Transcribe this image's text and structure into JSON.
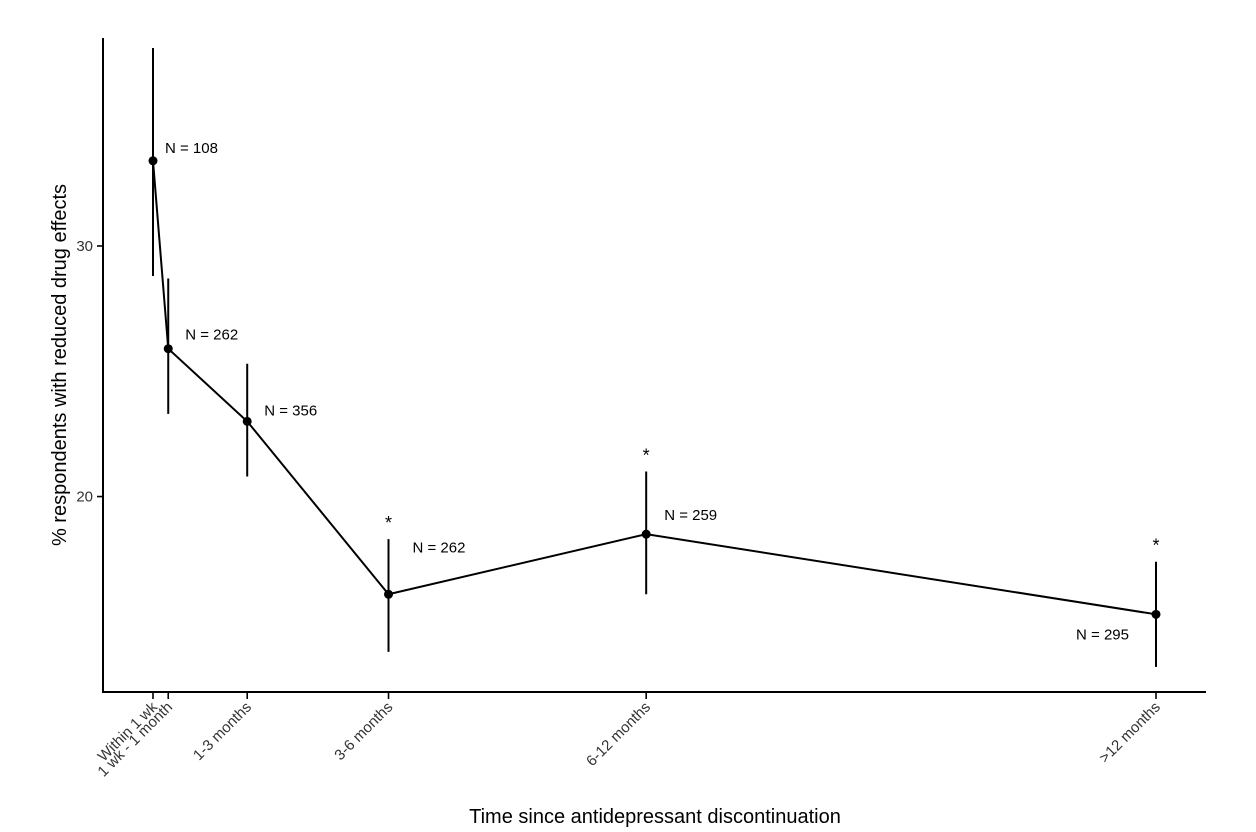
{
  "chart_data": {
    "type": "line",
    "title": "",
    "xlabel": "Time since antidepressant discontinuation",
    "ylabel": "% respondents with reduced drug effects",
    "x_ticks": [
      "Within 1 wk",
      "1 wk - 1 month",
      "1-3 months",
      "3-6 months",
      "6-12 months",
      ">12 months"
    ],
    "x_positions_months": [
      0.1,
      0.65,
      3.5,
      8.6,
      17.9,
      36.3
    ],
    "y_ticks": [
      20,
      30
    ],
    "ylim": [
      12.2,
      38.3
    ],
    "grid": false,
    "legend": "none",
    "points": [
      {
        "category": "Within 1 wk",
        "y": 33.4,
        "lower": 28.8,
        "upper": 37.9,
        "n_label": "N = 108",
        "significant": false,
        "significance_marker": ""
      },
      {
        "category": "1 wk - 1 month",
        "y": 25.9,
        "lower": 23.3,
        "upper": 28.7,
        "n_label": "N = 262",
        "significant": false,
        "significance_marker": ""
      },
      {
        "category": "1-3 months",
        "y": 23.0,
        "lower": 20.8,
        "upper": 25.3,
        "n_label": "N = 356",
        "significant": false,
        "significance_marker": ""
      },
      {
        "category": "3-6 months",
        "y": 16.1,
        "lower": 13.8,
        "upper": 18.3,
        "n_label": "N = 262",
        "significant": true,
        "significance_marker": "*"
      },
      {
        "category": "6-12 months",
        "y": 18.5,
        "lower": 16.1,
        "upper": 21.0,
        "n_label": "N = 259",
        "significant": true,
        "significance_marker": "*"
      },
      {
        "category": ">12 months",
        "y": 15.3,
        "lower": 13.2,
        "upper": 17.4,
        "n_label": "N = 295",
        "significant": true,
        "significance_marker": "*"
      }
    ],
    "colors": {
      "line": "#000000",
      "point": "#000000",
      "text": "#333333"
    }
  }
}
